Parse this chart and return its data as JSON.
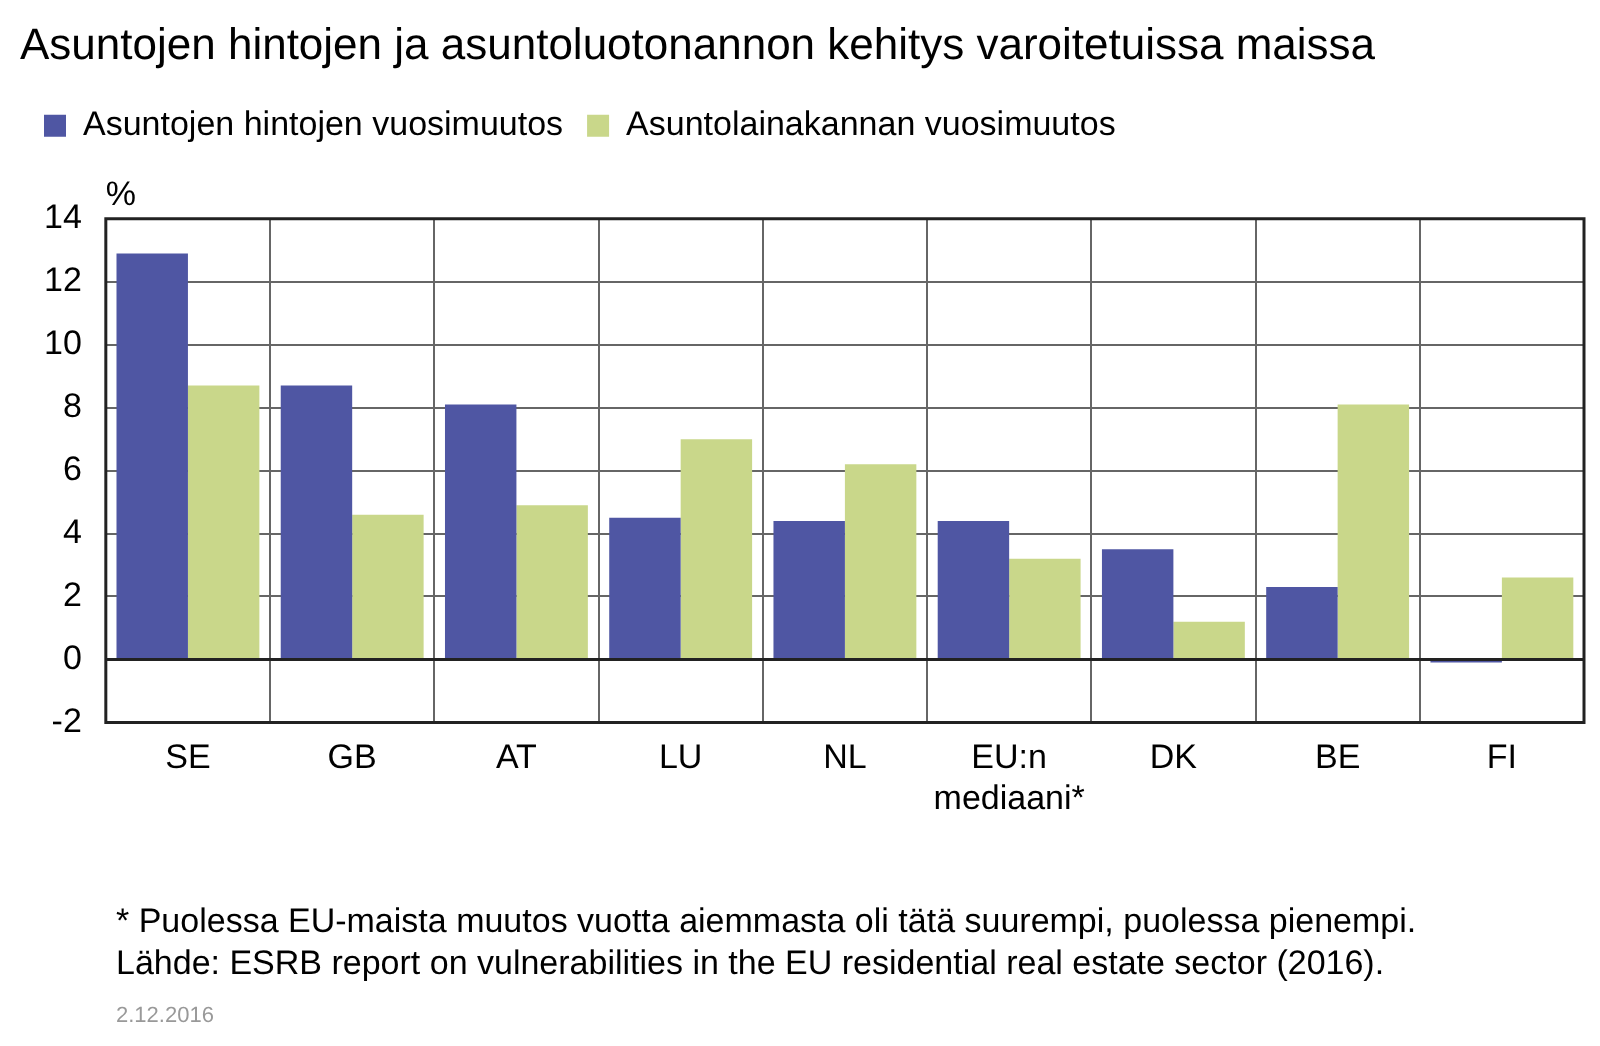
{
  "chart_data": {
    "type": "bar",
    "title": "Asuntojen hintojen ja asuntoluotonannon kehitys varoitetuissa maissa",
    "ylabel": "%",
    "categories": [
      "SE",
      "GB",
      "AT",
      "LU",
      "NL",
      "EU:n mediaani*",
      "DK",
      "BE",
      "FI"
    ],
    "series": [
      {
        "name": "Asuntojen hintojen vuosimuutos",
        "color": "#4f56a3",
        "values": [
          12.9,
          8.7,
          8.1,
          4.5,
          4.4,
          4.4,
          3.5,
          2.3,
          -0.1
        ]
      },
      {
        "name": "Asuntolainakannan vuosimuutos",
        "color": "#c9d78a",
        "values": [
          8.7,
          4.6,
          4.9,
          7.0,
          6.2,
          3.2,
          1.2,
          8.1,
          2.6
        ]
      }
    ],
    "ylim": [
      -2,
      14
    ],
    "yticks": [
      -2,
      0,
      2,
      4,
      6,
      8,
      10,
      12,
      14
    ],
    "grid": true,
    "legend": "top left",
    "annotations": [
      "* Puolessa EU-maista muutos vuotta aiemmasta oli tätä suurempi, puolessa pienempi.",
      "Lähde: ESRB report on vulnerabilities in the EU residential real estate sector (2016).",
      "2.12.2016"
    ]
  }
}
